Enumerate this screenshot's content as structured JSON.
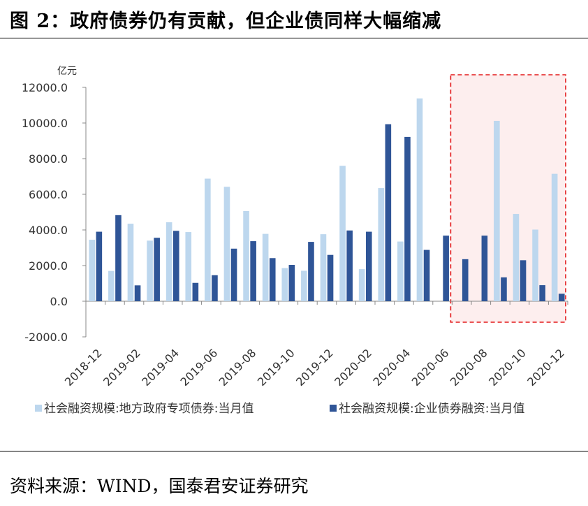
{
  "figure": {
    "title": "图 2：政府债券仍有贡献，但企业债同样大幅缩减",
    "source": "资料来源：WIND，国泰君安证券研究"
  },
  "chart_data": {
    "type": "bar",
    "y_unit": "亿元",
    "ylim": [
      -2000,
      12000
    ],
    "y_ticks": [
      "12000.0",
      "10000.0",
      "8000.0",
      "6000.0",
      "4000.0",
      "2000.0",
      "0.0",
      "-2000.0"
    ],
    "categories": [
      "2018-12",
      "2019-01",
      "2019-02",
      "2019-03",
      "2019-04",
      "2019-05",
      "2019-06",
      "2019-07",
      "2019-08",
      "2019-09",
      "2019-10",
      "2019-11",
      "2019-12",
      "2020-01",
      "2020-02",
      "2020-03",
      "2020-04",
      "2020-05",
      "2020-06",
      "2020-07",
      "2020-08",
      "2020-09",
      "2020-10",
      "2020-11",
      "2020-12"
    ],
    "x_tick_labels": [
      "2018-12",
      "2019-02",
      "2019-04",
      "2019-06",
      "2019-08",
      "2019-10",
      "2019-12",
      "2020-02",
      "2020-04",
      "2020-06",
      "2020-08",
      "2020-10",
      "2020-12"
    ],
    "series": [
      {
        "name": "社会融资规模:地方政府专项债券:当月值",
        "color": "#bdd7ee",
        "values": [
          3450,
          1700,
          4350,
          3400,
          4430,
          3880,
          6880,
          6420,
          5060,
          3780,
          1860,
          1710,
          3760,
          7600,
          1800,
          6350,
          3350,
          11380,
          0,
          0,
          0,
          10120,
          4900,
          4020,
          7150
        ]
      },
      {
        "name": "社会融资规模:企业债券融资:当月值",
        "color": "#2f5597",
        "values": [
          3900,
          4830,
          890,
          3560,
          3950,
          1030,
          1460,
          2950,
          3370,
          2420,
          2040,
          3330,
          2600,
          3970,
          3900,
          9930,
          9220,
          2880,
          3680,
          2360,
          3680,
          1340,
          2300,
          900,
          420
        ]
      }
    ],
    "highlight": {
      "from": "2020-07",
      "to": "2020-12",
      "border_color": "#e31a1c",
      "fill_color": "#fdeeee",
      "style": "dashed"
    },
    "legend_position": "bottom",
    "grid": false
  }
}
